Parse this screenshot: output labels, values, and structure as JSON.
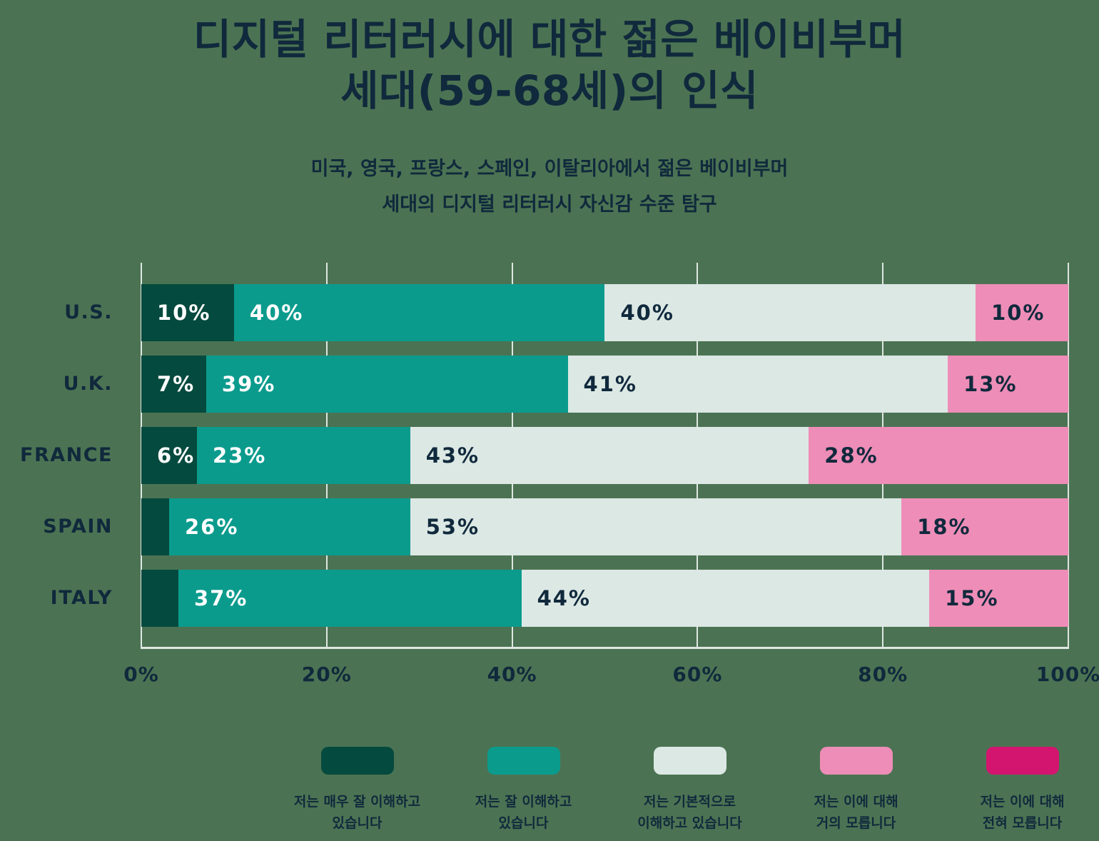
{
  "title": {
    "lines": [
      "디지털 리터러시에 대한 젊은 베이비부머",
      "세대(59-68세)의 인식"
    ]
  },
  "subtitle": {
    "lines": [
      "미국, 영국, 프랑스, 스페인, 이탈리아에서 젊은 베이비부머",
      "세대의 디지털 리터러시 자신감 수준 탐구"
    ]
  },
  "colors": {
    "background": "#4B7353",
    "text": "#10293C",
    "grid": "#DFE7E1",
    "bar_label_light": "#FFFFFF"
  },
  "chart_data": {
    "type": "bar",
    "stacked": true,
    "orientation": "horizontal",
    "title": "디지털 리터러시에 대한 젊은 베이비부머 세대(59-68세)의 인식",
    "subtitle": "미국, 영국, 프랑스, 스페인, 이탈리아에서 젊은 베이비부머 세대의 디지털 리터러시 자신감 수준 탐구",
    "categories": [
      "U.S.",
      "U.K.",
      "FRANCE",
      "SPAIN",
      "ITALY"
    ],
    "series": [
      {
        "name": "저는 매우 잘 이해하고 있습니다",
        "color": "#054A3E",
        "label_color": "#FFFFFF",
        "values": [
          10,
          7,
          6,
          3,
          4
        ]
      },
      {
        "name": "저는 잘 이해하고 있습니다",
        "color": "#0B9B8D",
        "label_color": "#FFFFFF",
        "values": [
          40,
          39,
          23,
          26,
          37
        ]
      },
      {
        "name": "저는 기본적으로 이해하고 있습니다",
        "color": "#DCE8E4",
        "label_color": "#10293C",
        "values": [
          40,
          41,
          43,
          53,
          44
        ]
      },
      {
        "name": "저는 이에 대해 거의 모릅니다",
        "color": "#EE8DB7",
        "label_color": "#10293C",
        "values": [
          10,
          13,
          28,
          18,
          15
        ]
      },
      {
        "name": "저는 이에 대해 전혀 모릅니다",
        "color": "#D31570",
        "label_color": "#FFFFFF",
        "values": [
          0,
          0,
          0,
          0,
          0
        ]
      }
    ],
    "label_format": "{v}%",
    "min_value_for_label": 5,
    "x_ticks": [
      "0%",
      "20%",
      "40%",
      "60%",
      "80%",
      "100%"
    ],
    "xlim": [
      0,
      100
    ],
    "grid": true,
    "legend_position": "bottom"
  },
  "legend": {
    "items": [
      {
        "lines": [
          "저는 매우 잘 이해하고",
          "있습니다"
        ],
        "color": "#054A3E"
      },
      {
        "lines": [
          "저는 잘 이해하고",
          "있습니다"
        ],
        "color": "#0B9B8D"
      },
      {
        "lines": [
          "저는 기본적으로",
          "이해하고 있습니다"
        ],
        "color": "#DCE8E4"
      },
      {
        "lines": [
          "저는 이에 대해",
          "거의 모릅니다"
        ],
        "color": "#EE8DB7"
      },
      {
        "lines": [
          "저는 이에 대해",
          "전혀 모릅니다"
        ],
        "color": "#D31570"
      }
    ]
  }
}
